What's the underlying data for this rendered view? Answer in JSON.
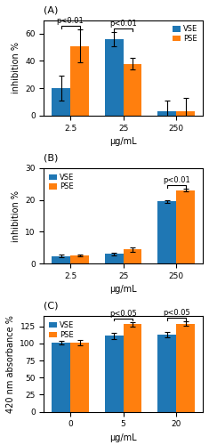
{
  "chart_data": [
    {
      "type": "bar",
      "title": "(A)",
      "categories": [
        "2.5",
        "25",
        "250"
      ],
      "xlabel": "μg/mL",
      "ylabel": "inhibition %",
      "series": [
        {
          "name": "VSE",
          "values": [
            20,
            56,
            3
          ],
          "errors": [
            9,
            5,
            8
          ]
        },
        {
          "name": "PSE",
          "values": [
            51,
            38,
            3
          ],
          "errors": [
            12,
            4,
            10
          ]
        }
      ],
      "ylim": [
        0,
        70
      ],
      "yticks": [
        0,
        20,
        40,
        60
      ],
      "legend": "upper right",
      "annotations": [
        {
          "text": "p<0.01",
          "category": "2.5"
        },
        {
          "text": "p<0.01",
          "category": "25"
        }
      ]
    },
    {
      "type": "bar",
      "title": "(B)",
      "categories": [
        "2.5",
        "25",
        "250"
      ],
      "xlabel": "μg/mL",
      "ylabel": "inhibition %",
      "series": [
        {
          "name": "VSE",
          "values": [
            2.4,
            3.0,
            19.5
          ],
          "errors": [
            0.4,
            0.5,
            0.5
          ]
        },
        {
          "name": "PSE",
          "values": [
            2.5,
            4.5,
            23.0
          ],
          "errors": [
            0.3,
            0.7,
            0.4
          ]
        }
      ],
      "ylim": [
        0,
        30
      ],
      "yticks": [
        0,
        10,
        20,
        30
      ],
      "legend": "upper left",
      "annotations": [
        {
          "text": "p<0.01",
          "category": "250"
        }
      ]
    },
    {
      "type": "bar",
      "title": "(C)",
      "categories": [
        "0",
        "5",
        "20"
      ],
      "xlabel": "μg/mL",
      "ylabel": "420 nm absorbance %",
      "series": [
        {
          "name": "VSE",
          "values": [
            101,
            111,
            113
          ],
          "errors": [
            3,
            5,
            4
          ]
        },
        {
          "name": "PSE",
          "values": [
            101,
            128,
            129
          ],
          "errors": [
            4,
            3,
            3
          ]
        }
      ],
      "ylim": [
        0,
        140
      ],
      "yticks": [
        0,
        25,
        50,
        75,
        100,
        125
      ],
      "legend": "upper left",
      "annotations": [
        {
          "text": "p<0.05",
          "category": "5"
        },
        {
          "text": "p<0.05",
          "category": "20"
        }
      ]
    }
  ]
}
